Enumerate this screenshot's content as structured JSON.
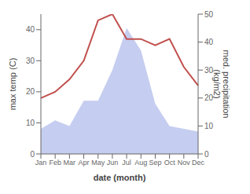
{
  "chart_data": {
    "type": "line",
    "categories": [
      "Jan",
      "Feb",
      "Mar",
      "Apr",
      "May",
      "Jun",
      "Jul",
      "Aug",
      "Sep",
      "Oct",
      "Nov",
      "Dec"
    ],
    "series": [
      {
        "type": "area",
        "color": "#c5cdf0",
        "axis": "y2",
        "values": [
          9,
          12,
          10,
          19,
          19,
          30,
          45,
          37,
          18,
          10,
          9,
          8
        ]
      },
      {
        "type": "line",
        "color": "#c0504d",
        "values": [
          18,
          20,
          24,
          30,
          43,
          45,
          37,
          37,
          35,
          37,
          28,
          22
        ]
      }
    ],
    "xlabel": "date (month)",
    "ylabel": "max temp (C)",
    "y2label": "med. precipitation\n(kg/m2)",
    "ylim": [
      0,
      45
    ],
    "yticks": [
      0,
      10,
      20,
      30,
      40
    ],
    "y2lim": [
      0,
      50
    ],
    "y2ticks": [
      0,
      10,
      20,
      30,
      40,
      50
    ]
  }
}
